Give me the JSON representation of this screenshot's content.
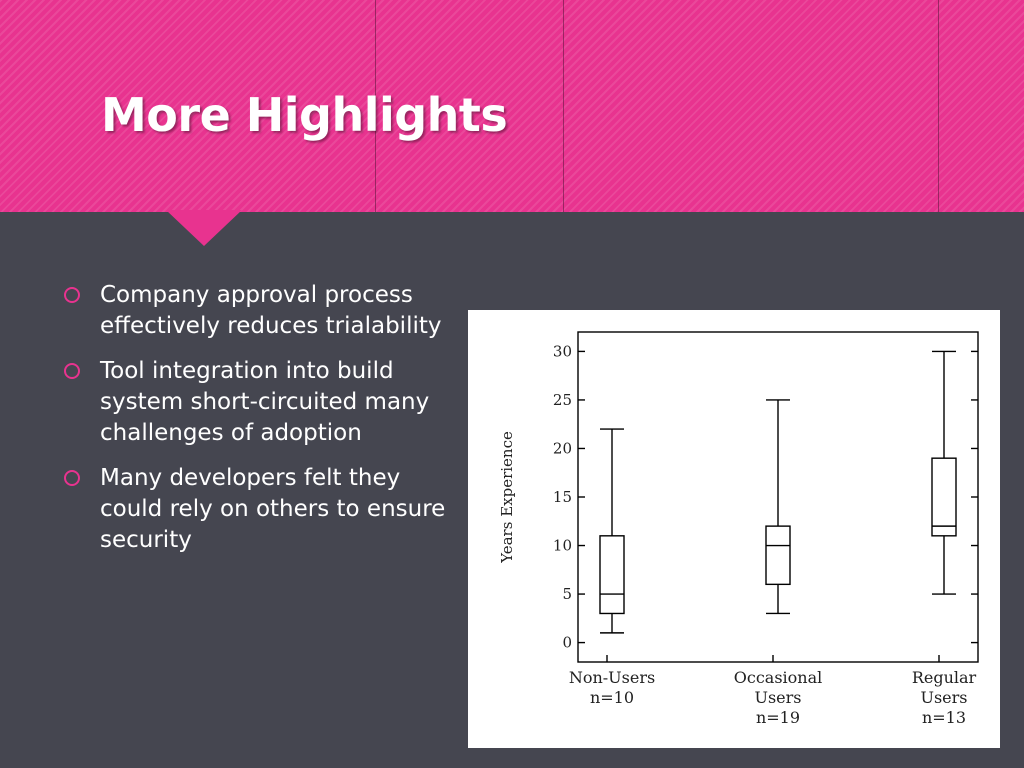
{
  "slide": {
    "title": "More Highlights",
    "bullets": [
      "Company approval process effectively reduces trialability",
      "Tool integration into build system short-circuited many challenges of adoption",
      "Many developers felt they could rely on others to ensure security"
    ],
    "colors": {
      "accent": "#e8338f",
      "background": "#454650",
      "text": "#ffffff"
    }
  },
  "chart_data": {
    "type": "box",
    "ylabel": "Years Experience",
    "ylim": [
      -2,
      32
    ],
    "yticks": [
      0,
      5,
      10,
      15,
      20,
      25,
      30
    ],
    "categories": [
      {
        "lines": [
          "Non-Users",
          "n=10"
        ]
      },
      {
        "lines": [
          "Occasional",
          "Users",
          "n=19"
        ]
      },
      {
        "lines": [
          "Regular",
          "Users",
          "n=13"
        ]
      }
    ],
    "boxes": [
      {
        "min": 1,
        "q1": 3,
        "median": 5,
        "q3": 11,
        "max": 22
      },
      {
        "min": 3,
        "q1": 6,
        "median": 10,
        "q3": 12,
        "max": 25
      },
      {
        "min": 5,
        "q1": 11,
        "median": 12,
        "q3": 19,
        "max": 30
      }
    ],
    "grid": false
  }
}
